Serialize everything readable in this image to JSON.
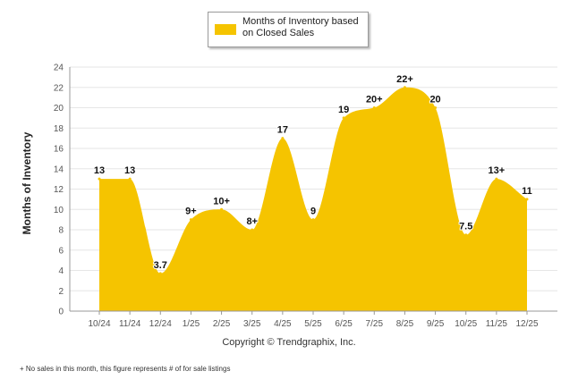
{
  "legend": {
    "label": "Months of Inventory based on Closed Sales"
  },
  "copyright": "Copyright © Trendgraphix, Inc.",
  "footnote": "+  No sales in this month, this figure represents # of for sale listings",
  "colors": {
    "fill": "#F5C400",
    "grid": "#e6e6e6",
    "axis": "#999999"
  },
  "chart_data": {
    "type": "area",
    "ylabel": "Months of Inventory",
    "xlabel": "",
    "ylim": [
      0,
      24
    ],
    "yticks": [
      0,
      2,
      4,
      6,
      8,
      10,
      12,
      14,
      16,
      18,
      20,
      22,
      24
    ],
    "categories": [
      "10/24",
      "11/24",
      "12/24",
      "1/25",
      "2/25",
      "3/25",
      "4/25",
      "5/25",
      "6/25",
      "7/25",
      "8/25",
      "9/25",
      "10/25",
      "11/25",
      "12/25"
    ],
    "values": [
      13,
      13,
      3.7,
      9,
      10,
      8,
      17,
      9,
      19,
      20,
      22,
      20,
      7.5,
      13,
      11
    ],
    "labels": [
      "13",
      "13",
      "3.7",
      "9+",
      "10+",
      "8+",
      "17",
      "9",
      "19",
      "20+",
      "22+",
      "20",
      "7.5",
      "13+",
      "11"
    ],
    "legend": "Months of Inventory based on Closed Sales",
    "grid": true
  }
}
